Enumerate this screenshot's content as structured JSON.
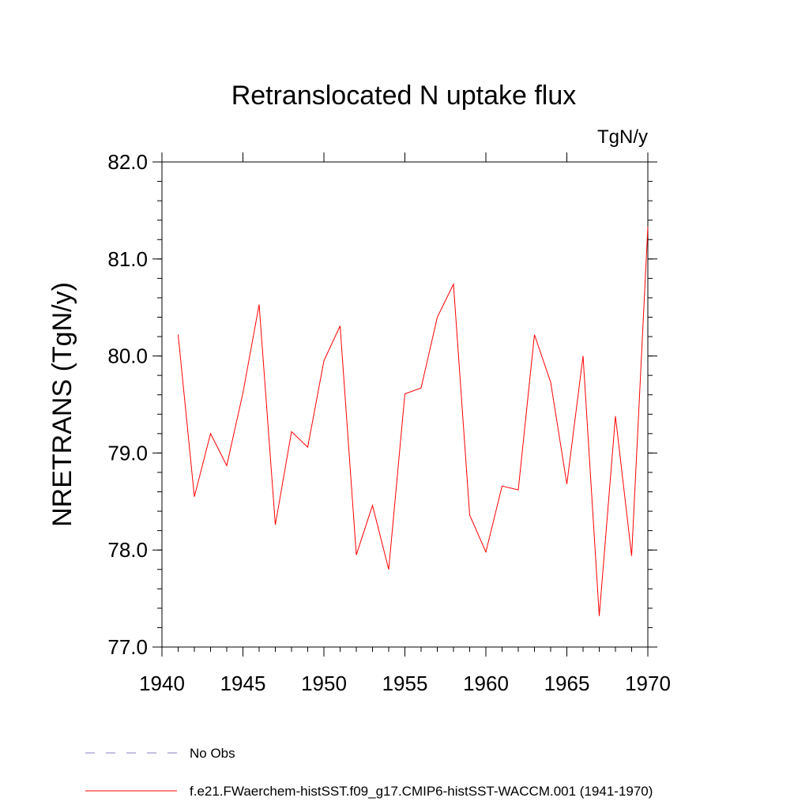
{
  "chart_data": {
    "type": "line",
    "title": "Retranslocated N uptake flux",
    "units": "TgN/y",
    "ylabel": "NRETRANS  (TgN/y)",
    "xlim": [
      1940,
      1970
    ],
    "ylim": [
      77.0,
      82.0
    ],
    "x_ticks": [
      1940,
      1945,
      1950,
      1955,
      1960,
      1965,
      1970
    ],
    "y_ticks": [
      "77.0",
      "78.0",
      "79.0",
      "80.0",
      "81.0",
      "82.0"
    ],
    "series": [
      {
        "name": "f.e21.FWaerchem-histSST.f09_g17.CMIP6-histSST-WACCM.001 (1941-1970)",
        "color": "#ff0000",
        "x": [
          1941,
          1942,
          1943,
          1944,
          1945,
          1946,
          1947,
          1948,
          1949,
          1950,
          1951,
          1952,
          1953,
          1954,
          1955,
          1956,
          1957,
          1958,
          1959,
          1960,
          1961,
          1962,
          1963,
          1964,
          1965,
          1966,
          1967,
          1968,
          1969,
          1970
        ],
        "y": [
          80.22,
          78.55,
          79.2,
          78.87,
          79.62,
          80.53,
          78.26,
          79.22,
          79.06,
          79.95,
          80.31,
          77.95,
          78.46,
          77.8,
          79.61,
          79.67,
          80.4,
          80.74,
          78.36,
          77.98,
          78.66,
          78.62,
          80.22,
          79.73,
          78.68,
          80.0,
          77.32,
          79.38,
          77.94,
          81.33
        ]
      }
    ],
    "legend": [
      {
        "label": "No Obs",
        "style": "dashed",
        "color": "#8c7fc4"
      },
      {
        "label": "f.e21.FWaerchem-histSST.f09_g17.CMIP6-histSST-WACCM.001 (1941-1970)",
        "style": "solid",
        "color": "#ff0000"
      }
    ]
  }
}
